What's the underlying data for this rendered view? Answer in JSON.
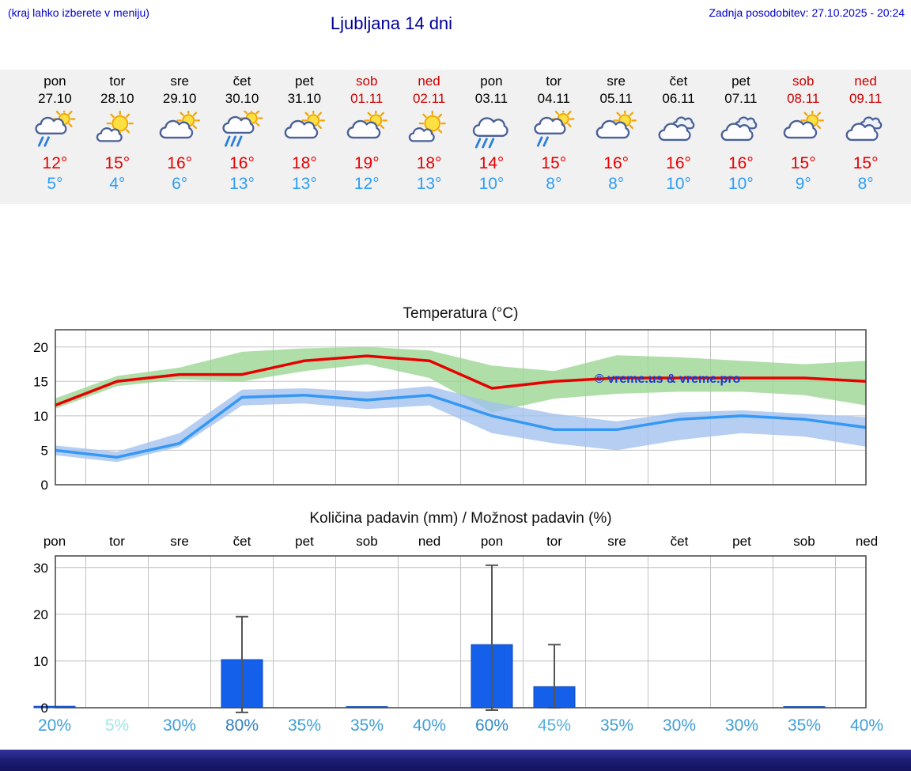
{
  "header": {
    "note": "(kraj lahko izberete v meniju)",
    "title": "Ljubljana 14 dni",
    "updated": "Zadnja posodobitev: 27.10.2025 - 20:24"
  },
  "forecast": {
    "days": [
      {
        "name": "pon",
        "date": "27.10",
        "weekend": false,
        "icon": "shower-sun",
        "tmax": "12°",
        "tmin": "5°"
      },
      {
        "name": "tor",
        "date": "28.10",
        "weekend": false,
        "icon": "partly-sunny",
        "tmax": "15°",
        "tmin": "4°"
      },
      {
        "name": "sre",
        "date": "29.10",
        "weekend": false,
        "icon": "partly-cloudy",
        "tmax": "16°",
        "tmin": "6°"
      },
      {
        "name": "čet",
        "date": "30.10",
        "weekend": false,
        "icon": "rain-sun",
        "tmax": "16°",
        "tmin": "13°"
      },
      {
        "name": "pet",
        "date": "31.10",
        "weekend": false,
        "icon": "partly-cloudy",
        "tmax": "18°",
        "tmin": "13°"
      },
      {
        "name": "sob",
        "date": "01.11",
        "weekend": true,
        "icon": "partly-cloudy",
        "tmax": "19°",
        "tmin": "12°"
      },
      {
        "name": "ned",
        "date": "02.11",
        "weekend": true,
        "icon": "partly-sunny",
        "tmax": "18°",
        "tmin": "13°"
      },
      {
        "name": "pon",
        "date": "03.11",
        "weekend": false,
        "icon": "rain",
        "tmax": "14°",
        "tmin": "10°"
      },
      {
        "name": "tor",
        "date": "04.11",
        "weekend": false,
        "icon": "shower-sun",
        "tmax": "15°",
        "tmin": "8°"
      },
      {
        "name": "sre",
        "date": "05.11",
        "weekend": false,
        "icon": "partly-cloudy",
        "tmax": "16°",
        "tmin": "8°"
      },
      {
        "name": "čet",
        "date": "06.11",
        "weekend": false,
        "icon": "cloudy",
        "tmax": "16°",
        "tmin": "10°"
      },
      {
        "name": "pet",
        "date": "07.11",
        "weekend": false,
        "icon": "cloudy",
        "tmax": "16°",
        "tmin": "10°"
      },
      {
        "name": "sob",
        "date": "08.11",
        "weekend": true,
        "icon": "partly-cloudy",
        "tmax": "15°",
        "tmin": "9°"
      },
      {
        "name": "ned",
        "date": "09.11",
        "weekend": true,
        "icon": "cloudy",
        "tmax": "15°",
        "tmin": "8°"
      }
    ]
  },
  "chart_data": [
    {
      "type": "line",
      "title": "Temperatura (°C)",
      "categories": [
        "pon 27.10",
        "tor 28.10",
        "sre 29.10",
        "čet 30.10",
        "pet 31.10",
        "sob 01.11",
        "ned 02.11",
        "pon 03.11",
        "tor 04.11",
        "sre 05.11",
        "čet 06.11",
        "pet 07.11",
        "sob 08.11",
        "ned 09.11"
      ],
      "series": [
        {
          "name": "max",
          "color": "#e60000",
          "values": [
            11.5,
            15,
            16,
            16,
            18,
            18.7,
            18,
            14,
            15,
            15.5,
            15.5,
            15.5,
            15.5,
            15
          ]
        },
        {
          "name": "min",
          "color": "#3598f5",
          "values": [
            5,
            4,
            6,
            12.7,
            13,
            12.3,
            13,
            10,
            8,
            8,
            9.5,
            10,
            9.5,
            8.3
          ]
        }
      ],
      "bands": [
        {
          "name": "max-range",
          "color": "#9bd694",
          "upper": [
            12.5,
            15.8,
            17,
            19.3,
            19.8,
            20,
            19.5,
            17.3,
            16.5,
            18.8,
            18.5,
            18,
            17.5,
            18
          ],
          "lower": [
            11,
            14.3,
            15.3,
            15,
            16.5,
            17.5,
            15.5,
            10.5,
            12.5,
            13.2,
            13.5,
            13.5,
            13,
            11.5
          ]
        },
        {
          "name": "min-range",
          "color": "#a3c2ef",
          "upper": [
            5.7,
            4.8,
            7.5,
            13.8,
            14,
            13.5,
            14.3,
            12,
            10.3,
            9.2,
            10.5,
            10.8,
            10.3,
            9.8
          ],
          "lower": [
            4.3,
            3.3,
            5.5,
            11.5,
            11.8,
            11,
            11.5,
            7.5,
            6,
            5,
            6.5,
            7.5,
            7,
            5.5
          ]
        }
      ],
      "ylim": [
        0,
        22.5
      ],
      "yticks": [
        0,
        5,
        10,
        15,
        20
      ],
      "grid": true,
      "watermark": "© vreme.us & vreme.pro",
      "watermark_color": "#2233cc"
    },
    {
      "type": "bar",
      "title": "Količina padavin (mm) / Možnost padavin (%)",
      "categories": [
        "pon",
        "tor",
        "sre",
        "čet",
        "pet",
        "sob",
        "ned",
        "pon",
        "tor",
        "sre",
        "čet",
        "pet",
        "sob",
        "ned"
      ],
      "values": [
        0.3,
        0,
        0,
        10.3,
        0,
        0.2,
        0,
        13.5,
        4.5,
        0,
        0,
        0,
        0.2,
        0
      ],
      "error_min": [
        0,
        0,
        0,
        -1,
        0,
        0,
        0,
        -0.5,
        0,
        0,
        0,
        0,
        0,
        0
      ],
      "error_max": [
        0,
        0,
        0,
        19.5,
        0,
        0,
        0,
        30.5,
        13.5,
        0,
        0,
        0,
        0,
        0
      ],
      "probabilities": [
        "20%",
        "5%",
        "30%",
        "80%",
        "35%",
        "35%",
        "40%",
        "60%",
        "45%",
        "35%",
        "30%",
        "30%",
        "35%",
        "40%"
      ],
      "prob_colors": [
        "#3f9fd8",
        "#9fe6ea",
        "#3f9fd8",
        "#2f7fc4",
        "#3f9fd8",
        "#3f9fd8",
        "#3f9fd8",
        "#2f8ac9",
        "#55b0dd",
        "#3f9fd8",
        "#3f9fd8",
        "#3f9fd8",
        "#3f9fd8",
        "#3f9fd8"
      ],
      "ylim": [
        0,
        32.5
      ],
      "yticks": [
        0,
        10,
        20,
        30
      ],
      "grid": true,
      "bar_color": "#1560ea"
    }
  ]
}
